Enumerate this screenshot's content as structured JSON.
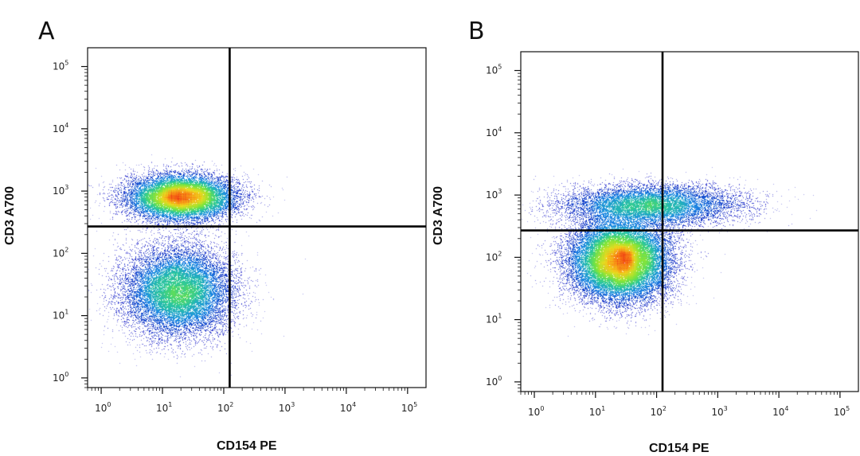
{
  "chart_data": [
    {
      "type": "scatter",
      "panel_label": "A",
      "title": "",
      "xlabel": "CD154 PE",
      "ylabel": "CD3 A700",
      "x_scale": "log",
      "y_scale": "log",
      "xlim": [
        0.6,
        200000
      ],
      "ylim": [
        0.7,
        200000
      ],
      "x_ticks": [
        {
          "base": "10",
          "exp": "0",
          "value": 1
        },
        {
          "base": "10",
          "exp": "1",
          "value": 10
        },
        {
          "base": "10",
          "exp": "2",
          "value": 100
        },
        {
          "base": "10",
          "exp": "3",
          "value": 1000
        },
        {
          "base": "10",
          "exp": "4",
          "value": 10000
        },
        {
          "base": "10",
          "exp": "5",
          "value": 100000
        }
      ],
      "y_ticks": [
        {
          "base": "10",
          "exp": "0",
          "value": 1
        },
        {
          "base": "10",
          "exp": "1",
          "value": 10
        },
        {
          "base": "10",
          "exp": "2",
          "value": 100
        },
        {
          "base": "10",
          "exp": "3",
          "value": 1000
        },
        {
          "base": "10",
          "exp": "4",
          "value": 10000
        },
        {
          "base": "10",
          "exp": "5",
          "value": 100000
        }
      ],
      "quadrant_gate": {
        "x": 125,
        "y": 270
      },
      "populations": [
        {
          "center": [
            20,
            800
          ],
          "log_spread": [
            0.55,
            0.22
          ],
          "density": "high"
        },
        {
          "center": [
            18,
            25
          ],
          "log_spread": [
            0.55,
            0.45
          ],
          "density": "high"
        }
      ],
      "grid": false,
      "legend": "none"
    },
    {
      "type": "scatter",
      "panel_label": "B",
      "title": "",
      "xlabel": "CD154 PE",
      "ylabel": "CD3 A700",
      "x_scale": "log",
      "y_scale": "log",
      "xlim": [
        0.6,
        200000
      ],
      "ylim": [
        0.7,
        200000
      ],
      "x_ticks": [
        {
          "base": "10",
          "exp": "0",
          "value": 1
        },
        {
          "base": "10",
          "exp": "1",
          "value": 10
        },
        {
          "base": "10",
          "exp": "2",
          "value": 100
        },
        {
          "base": "10",
          "exp": "3",
          "value": 1000
        },
        {
          "base": "10",
          "exp": "4",
          "value": 10000
        },
        {
          "base": "10",
          "exp": "5",
          "value": 100000
        }
      ],
      "y_ticks": [
        {
          "base": "10",
          "exp": "0",
          "value": 1
        },
        {
          "base": "10",
          "exp": "1",
          "value": 10
        },
        {
          "base": "10",
          "exp": "2",
          "value": 100
        },
        {
          "base": "10",
          "exp": "3",
          "value": 1000
        },
        {
          "base": "10",
          "exp": "4",
          "value": 10000
        },
        {
          "base": "10",
          "exp": "5",
          "value": 100000
        }
      ],
      "quadrant_gate": {
        "x": 125,
        "y": 270
      },
      "populations": [
        {
          "center": [
            80,
            700
          ],
          "log_spread": [
            0.9,
            0.2
          ],
          "density": "medium"
        },
        {
          "center": [
            25,
            90
          ],
          "log_spread": [
            0.5,
            0.4
          ],
          "density": "very high"
        }
      ],
      "grid": false,
      "legend": "none"
    }
  ]
}
